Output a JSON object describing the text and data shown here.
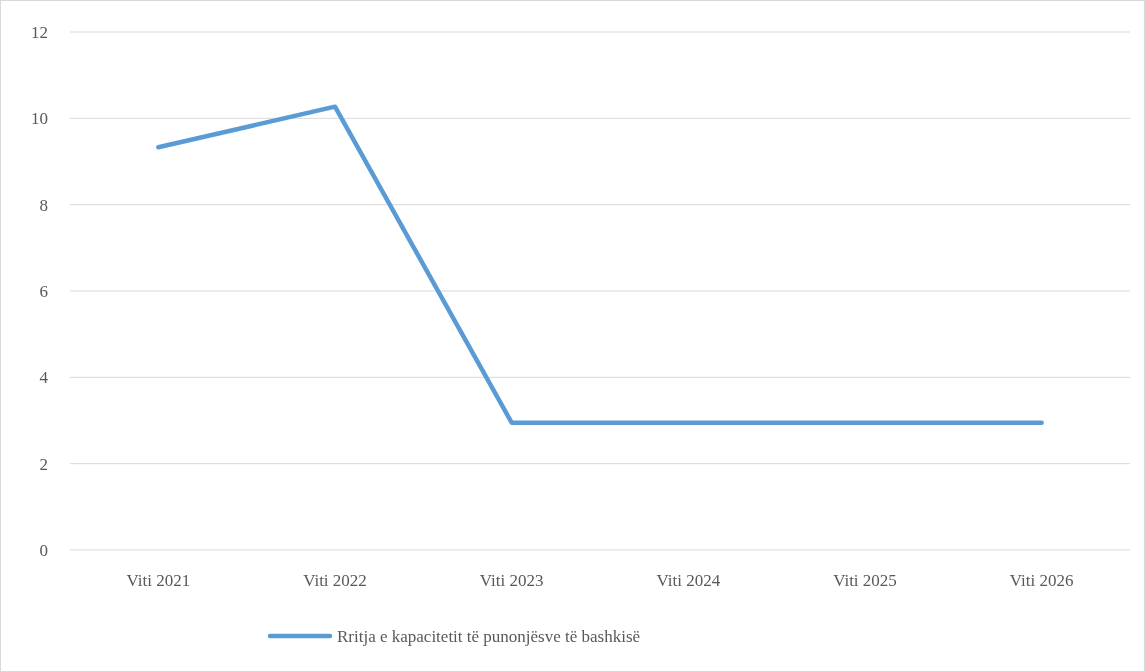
{
  "chart_data": {
    "type": "line",
    "categories": [
      "Viti 2021",
      "Viti 2022",
      "Viti 2023",
      "Viti 2024",
      "Viti 2025",
      "Viti 2026"
    ],
    "series": [
      {
        "name": "Rritja e kapacitetit të punonjësve të bashkisë",
        "color": "#5b9bd5",
        "values": [
          9.33,
          10.27,
          2.95,
          2.95,
          2.95,
          2.95
        ]
      }
    ],
    "ylim": [
      0,
      12
    ],
    "yticks": [
      0,
      2,
      4,
      6,
      8,
      10,
      12
    ],
    "grid": "y",
    "legend": "bottom",
    "marker": "none",
    "line_style": "solid"
  }
}
